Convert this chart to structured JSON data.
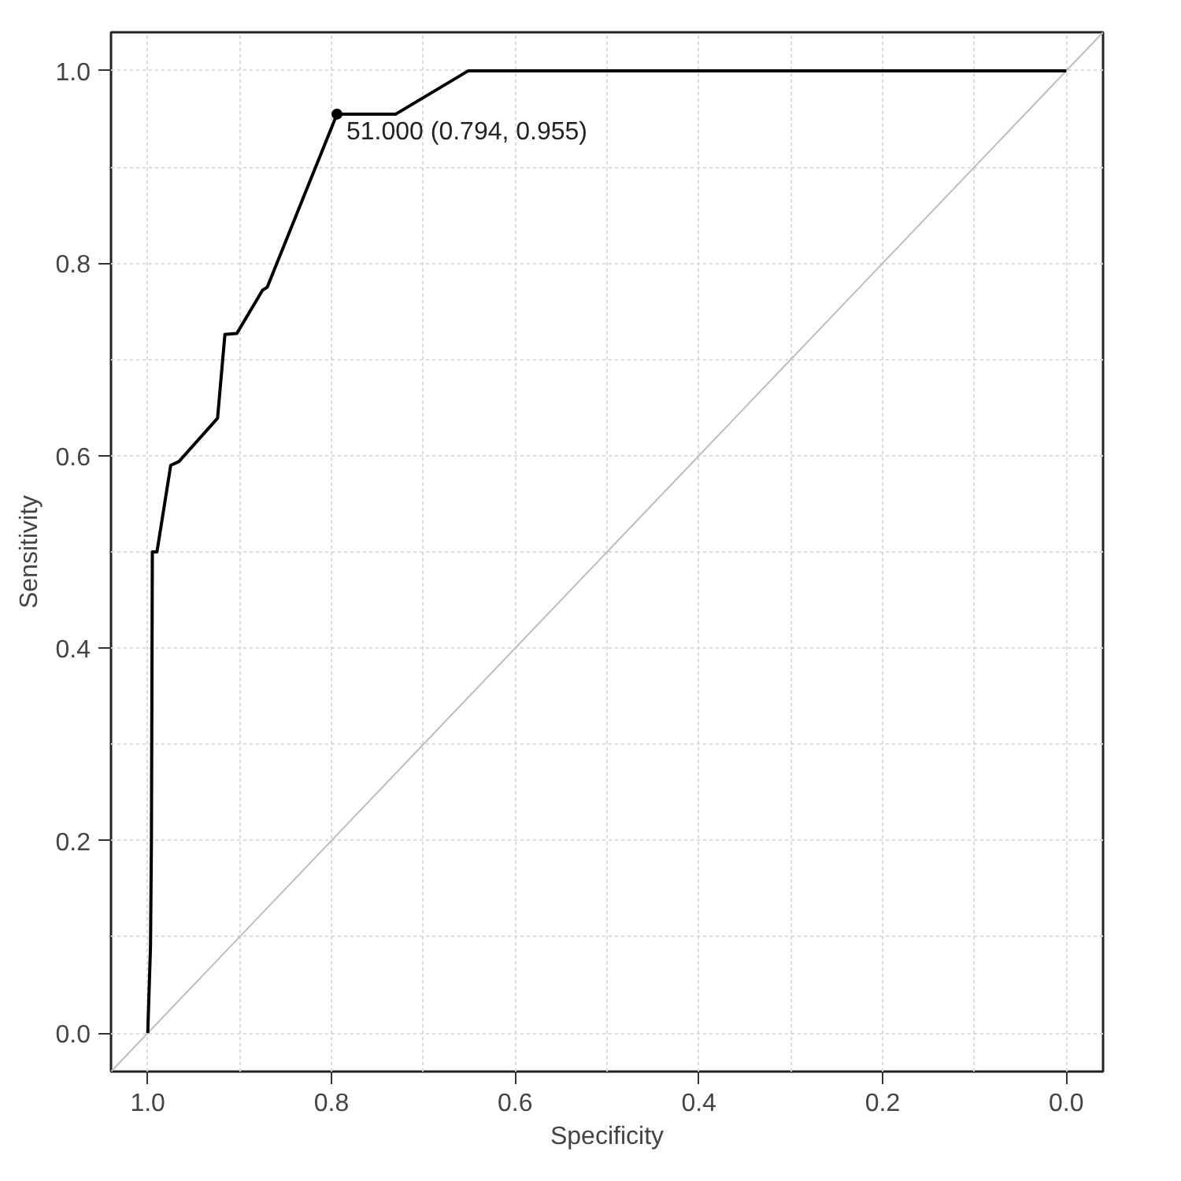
{
  "chart_data": {
    "type": "line",
    "xlabel": "Specificity",
    "ylabel": "Sensitivity",
    "xlim": [
      1.04,
      -0.04
    ],
    "ylim": [
      -0.04,
      1.04
    ],
    "xticks": [
      {
        "value": 1.0,
        "label": "1.0"
      },
      0.8,
      0.6,
      0.4,
      0.2,
      {
        "value": 0.0,
        "label": "0.0"
      }
    ],
    "yticks": [
      {
        "value": 0.0,
        "label": "0.0"
      },
      0.2,
      0.4,
      0.6,
      0.8,
      {
        "value": 1.0,
        "label": "1.0"
      }
    ],
    "grid": true,
    "marker": "none",
    "line_style": "solid",
    "series": [
      {
        "color": "#bdbdbd",
        "x": [
          1.04,
          -0.04
        ],
        "values": [
          -0.04,
          1.04
        ]
      },
      {
        "color": "#000000",
        "x": [
          1.0,
          0.997,
          0.996,
          0.995,
          0.99,
          0.985,
          0.975,
          0.966,
          0.924,
          0.916,
          0.903,
          0.875,
          0.87,
          0.794,
          0.73,
          0.651,
          0.0
        ],
        "values": [
          0.0,
          0.09,
          0.2,
          0.5,
          0.5,
          0.53,
          0.59,
          0.594,
          0.639,
          0.726,
          0.727,
          0.772,
          0.775,
          0.955,
          0.955,
          1.0,
          1.0
        ]
      },
      {
        "type": "scatter",
        "marker": "circle",
        "color": "#000000",
        "x": [
          0.794
        ],
        "values": [
          0.955
        ]
      }
    ],
    "annotations": [
      {
        "text": "51.000 (0.794, 0.955)",
        "x": 0.794,
        "y": 0.955
      }
    ]
  }
}
